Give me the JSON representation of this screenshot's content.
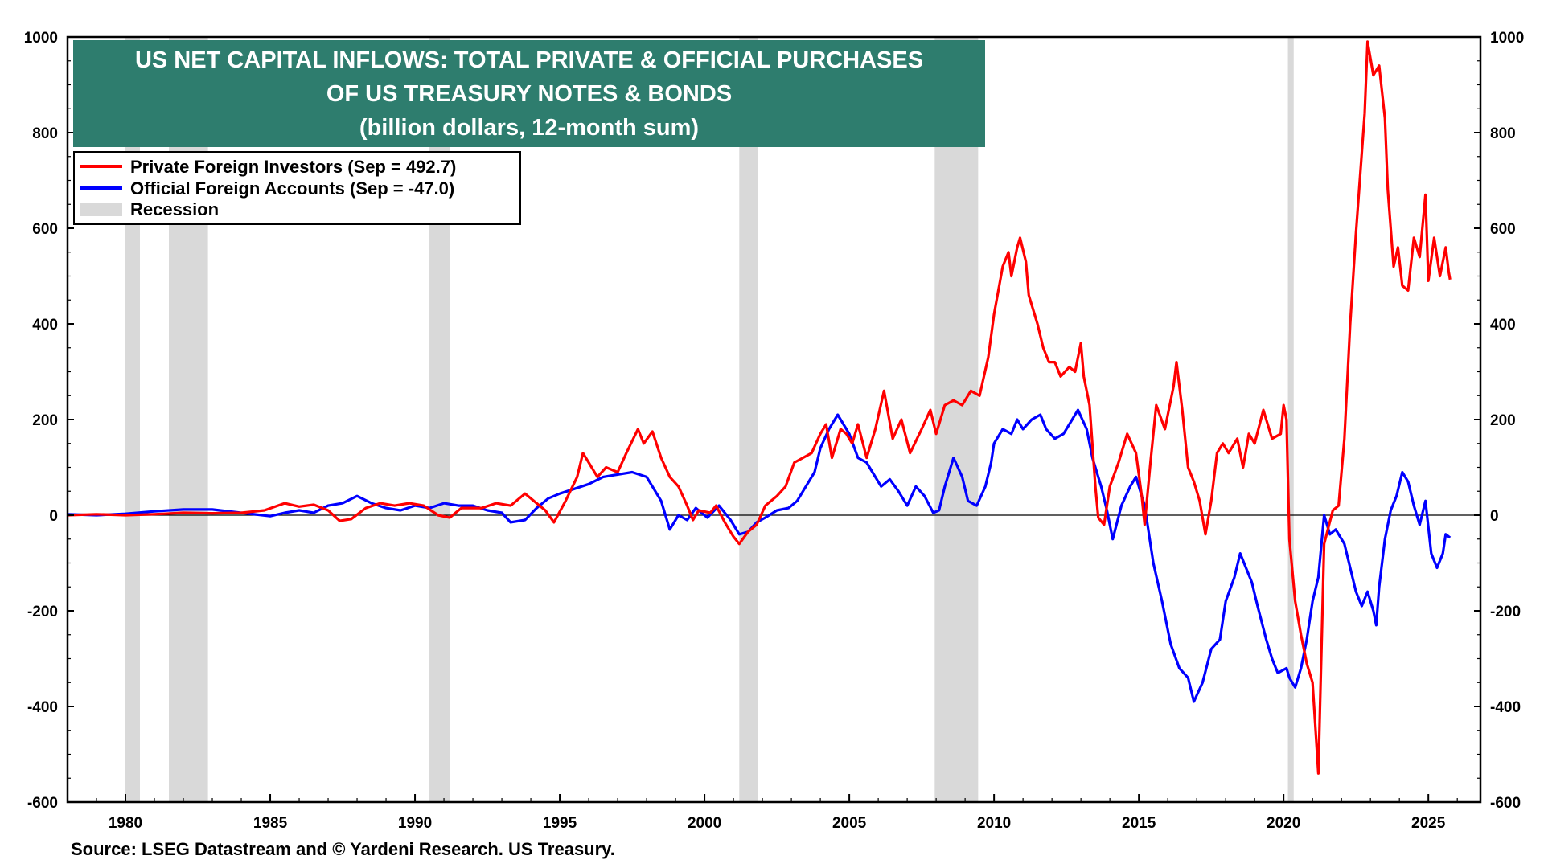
{
  "chart_data": {
    "type": "line",
    "title": [
      "US NET CAPITAL INFLOWS: TOTAL PRIVATE & OFFICIAL PURCHASES",
      "OF US TREASURY NOTES & BONDS",
      "(billion dollars, 12-month sum)"
    ],
    "xlim": [
      1978,
      2026.8
    ],
    "ylim": [
      -600,
      1000
    ],
    "x_ticks": [
      1980,
      1985,
      1990,
      1995,
      2000,
      2005,
      2010,
      2015,
      2020,
      2025
    ],
    "y_ticks": [
      -600,
      -400,
      -200,
      0,
      200,
      400,
      600,
      800,
      1000
    ],
    "legend": {
      "placement": "top-left",
      "entries": [
        "Private Foreign Investors (Sep = 492.7)",
        "Official Foreign Accounts (Sep = -47.0)",
        "Recession"
      ]
    },
    "recessions": [
      [
        1980.0,
        1980.5
      ],
      [
        1981.5,
        1982.85
      ],
      [
        1990.5,
        1991.2
      ],
      [
        2001.2,
        2001.85
      ],
      [
        2007.95,
        2009.45
      ],
      [
        2020.15,
        2020.35
      ]
    ],
    "series": [
      {
        "name": "Private Foreign Investors",
        "color": "#ff0000",
        "points": [
          [
            1978,
            0
          ],
          [
            1979,
            2
          ],
          [
            1980,
            0
          ],
          [
            1981,
            2
          ],
          [
            1982,
            5
          ],
          [
            1983,
            4
          ],
          [
            1984,
            5
          ],
          [
            1984.8,
            10
          ],
          [
            1985.5,
            25
          ],
          [
            1986,
            18
          ],
          [
            1986.5,
            22
          ],
          [
            1987,
            10
          ],
          [
            1987.4,
            -12
          ],
          [
            1987.8,
            -8
          ],
          [
            1988.3,
            15
          ],
          [
            1988.8,
            25
          ],
          [
            1989.3,
            20
          ],
          [
            1989.8,
            25
          ],
          [
            1990.3,
            20
          ],
          [
            1990.8,
            0
          ],
          [
            1991.2,
            -5
          ],
          [
            1991.6,
            15
          ],
          [
            1992.3,
            15
          ],
          [
            1992.8,
            25
          ],
          [
            1993.3,
            20
          ],
          [
            1993.8,
            45
          ],
          [
            1994.2,
            25
          ],
          [
            1994.5,
            10
          ],
          [
            1994.8,
            -15
          ],
          [
            1995.2,
            30
          ],
          [
            1995.6,
            80
          ],
          [
            1995.8,
            130
          ],
          [
            1996,
            110
          ],
          [
            1996.3,
            80
          ],
          [
            1996.6,
            100
          ],
          [
            1997,
            90
          ],
          [
            1997.3,
            130
          ],
          [
            1997.7,
            180
          ],
          [
            1997.9,
            150
          ],
          [
            1998.2,
            175
          ],
          [
            1998.5,
            120
          ],
          [
            1998.8,
            80
          ],
          [
            1999.1,
            60
          ],
          [
            1999.4,
            20
          ],
          [
            1999.6,
            -10
          ],
          [
            1999.8,
            10
          ],
          [
            2000.2,
            5
          ],
          [
            2000.4,
            20
          ],
          [
            2000.7,
            -15
          ],
          [
            2001.0,
            -45
          ],
          [
            2001.2,
            -60
          ],
          [
            2001.5,
            -35
          ],
          [
            2001.8,
            -20
          ],
          [
            2002.1,
            20
          ],
          [
            2002.5,
            40
          ],
          [
            2002.8,
            60
          ],
          [
            2003.1,
            110
          ],
          [
            2003.4,
            120
          ],
          [
            2003.7,
            130
          ],
          [
            2004.0,
            170
          ],
          [
            2004.2,
            190
          ],
          [
            2004.4,
            120
          ],
          [
            2004.7,
            180
          ],
          [
            2004.9,
            170
          ],
          [
            2005.1,
            150
          ],
          [
            2005.3,
            190
          ],
          [
            2005.6,
            120
          ],
          [
            2005.9,
            180
          ],
          [
            2006.2,
            260
          ],
          [
            2006.5,
            160
          ],
          [
            2006.8,
            200
          ],
          [
            2007.1,
            130
          ],
          [
            2007.5,
            180
          ],
          [
            2007.8,
            220
          ],
          [
            2008.0,
            170
          ],
          [
            2008.3,
            230
          ],
          [
            2008.6,
            240
          ],
          [
            2008.9,
            230
          ],
          [
            2009.2,
            260
          ],
          [
            2009.5,
            250
          ],
          [
            2009.8,
            330
          ],
          [
            2010.0,
            420
          ],
          [
            2010.3,
            520
          ],
          [
            2010.5,
            550
          ],
          [
            2010.6,
            500
          ],
          [
            2010.8,
            560
          ],
          [
            2010.9,
            580
          ],
          [
            2011.1,
            530
          ],
          [
            2011.2,
            460
          ],
          [
            2011.5,
            400
          ],
          [
            2011.7,
            350
          ],
          [
            2011.9,
            320
          ],
          [
            2012.1,
            320
          ],
          [
            2012.3,
            290
          ],
          [
            2012.6,
            310
          ],
          [
            2012.8,
            300
          ],
          [
            2013.0,
            360
          ],
          [
            2013.1,
            290
          ],
          [
            2013.3,
            230
          ],
          [
            2013.5,
            60
          ],
          [
            2013.6,
            -5
          ],
          [
            2013.8,
            -20
          ],
          [
            2014.0,
            60
          ],
          [
            2014.3,
            110
          ],
          [
            2014.6,
            170
          ],
          [
            2014.9,
            130
          ],
          [
            2015.1,
            40
          ],
          [
            2015.2,
            -20
          ],
          [
            2015.4,
            110
          ],
          [
            2015.6,
            230
          ],
          [
            2015.9,
            180
          ],
          [
            2016.2,
            270
          ],
          [
            2016.3,
            320
          ],
          [
            2016.5,
            220
          ],
          [
            2016.7,
            100
          ],
          [
            2016.9,
            70
          ],
          [
            2017.1,
            30
          ],
          [
            2017.3,
            -40
          ],
          [
            2017.5,
            30
          ],
          [
            2017.7,
            130
          ],
          [
            2017.9,
            150
          ],
          [
            2018.1,
            130
          ],
          [
            2018.4,
            160
          ],
          [
            2018.6,
            100
          ],
          [
            2018.8,
            170
          ],
          [
            2019.0,
            150
          ],
          [
            2019.3,
            220
          ],
          [
            2019.6,
            160
          ],
          [
            2019.9,
            170
          ],
          [
            2020.0,
            230
          ],
          [
            2020.1,
            200
          ],
          [
            2020.2,
            -50
          ],
          [
            2020.4,
            -180
          ],
          [
            2020.6,
            -250
          ],
          [
            2020.8,
            -310
          ],
          [
            2021.0,
            -350
          ],
          [
            2021.2,
            -540
          ],
          [
            2021.4,
            -60
          ],
          [
            2021.7,
            10
          ],
          [
            2021.9,
            20
          ],
          [
            2022.1,
            160
          ],
          [
            2022.3,
            400
          ],
          [
            2022.5,
            590
          ],
          [
            2022.8,
            840
          ],
          [
            2022.9,
            990
          ],
          [
            2023.1,
            920
          ],
          [
            2023.3,
            940
          ],
          [
            2023.5,
            830
          ],
          [
            2023.6,
            680
          ],
          [
            2023.8,
            520
          ],
          [
            2023.95,
            560
          ],
          [
            2024.1,
            480
          ],
          [
            2024.3,
            470
          ],
          [
            2024.5,
            580
          ],
          [
            2024.7,
            540
          ],
          [
            2024.9,
            670
          ],
          [
            2025.0,
            490
          ],
          [
            2025.2,
            580
          ],
          [
            2025.4,
            500
          ],
          [
            2025.6,
            560
          ],
          [
            2025.7,
            510
          ],
          [
            2025.75,
            492.7
          ]
        ]
      },
      {
        "name": "Official Foreign Accounts",
        "color": "#0000ff",
        "points": [
          [
            1978,
            2
          ],
          [
            1979,
            0
          ],
          [
            1980,
            3
          ],
          [
            1981,
            8
          ],
          [
            1982,
            12
          ],
          [
            1983,
            12
          ],
          [
            1984,
            5
          ],
          [
            1985,
            -2
          ],
          [
            1985.5,
            5
          ],
          [
            1986,
            10
          ],
          [
            1986.5,
            5
          ],
          [
            1987,
            20
          ],
          [
            1987.5,
            25
          ],
          [
            1988,
            40
          ],
          [
            1988.5,
            25
          ],
          [
            1989,
            15
          ],
          [
            1989.5,
            10
          ],
          [
            1990,
            20
          ],
          [
            1990.5,
            15
          ],
          [
            1991,
            25
          ],
          [
            1991.5,
            20
          ],
          [
            1992,
            20
          ],
          [
            1992.5,
            10
          ],
          [
            1993,
            5
          ],
          [
            1993.3,
            -15
          ],
          [
            1993.8,
            -10
          ],
          [
            1994.2,
            15
          ],
          [
            1994.6,
            35
          ],
          [
            1995,
            45
          ],
          [
            1995.5,
            55
          ],
          [
            1996,
            65
          ],
          [
            1996.5,
            80
          ],
          [
            1997,
            85
          ],
          [
            1997.5,
            90
          ],
          [
            1998,
            80
          ],
          [
            1998.5,
            30
          ],
          [
            1998.8,
            -30
          ],
          [
            1999.1,
            0
          ],
          [
            1999.4,
            -10
          ],
          [
            1999.7,
            15
          ],
          [
            2000.1,
            -5
          ],
          [
            2000.5,
            20
          ],
          [
            2000.9,
            -10
          ],
          [
            2001.2,
            -40
          ],
          [
            2001.5,
            -35
          ],
          [
            2001.8,
            -15
          ],
          [
            2002.1,
            -5
          ],
          [
            2002.5,
            10
          ],
          [
            2002.9,
            15
          ],
          [
            2003.2,
            30
          ],
          [
            2003.5,
            60
          ],
          [
            2003.8,
            90
          ],
          [
            2004.0,
            140
          ],
          [
            2004.3,
            180
          ],
          [
            2004.6,
            210
          ],
          [
            2004.8,
            190
          ],
          [
            2005.0,
            170
          ],
          [
            2005.3,
            120
          ],
          [
            2005.6,
            110
          ],
          [
            2005.8,
            90
          ],
          [
            2006.1,
            60
          ],
          [
            2006.4,
            75
          ],
          [
            2006.7,
            50
          ],
          [
            2007.0,
            20
          ],
          [
            2007.3,
            60
          ],
          [
            2007.6,
            40
          ],
          [
            2007.9,
            5
          ],
          [
            2008.1,
            10
          ],
          [
            2008.3,
            60
          ],
          [
            2008.6,
            120
          ],
          [
            2008.9,
            80
          ],
          [
            2009.1,
            30
          ],
          [
            2009.4,
            20
          ],
          [
            2009.7,
            60
          ],
          [
            2009.9,
            110
          ],
          [
            2010.0,
            150
          ],
          [
            2010.3,
            180
          ],
          [
            2010.6,
            170
          ],
          [
            2010.8,
            200
          ],
          [
            2011.0,
            180
          ],
          [
            2011.3,
            200
          ],
          [
            2011.6,
            210
          ],
          [
            2011.8,
            180
          ],
          [
            2012.1,
            160
          ],
          [
            2012.4,
            170
          ],
          [
            2012.7,
            200
          ],
          [
            2012.9,
            220
          ],
          [
            2013.2,
            180
          ],
          [
            2013.4,
            120
          ],
          [
            2013.7,
            60
          ],
          [
            2013.9,
            10
          ],
          [
            2014.1,
            -50
          ],
          [
            2014.4,
            20
          ],
          [
            2014.7,
            60
          ],
          [
            2014.9,
            80
          ],
          [
            2015.2,
            20
          ],
          [
            2015.5,
            -100
          ],
          [
            2015.8,
            -180
          ],
          [
            2016.1,
            -270
          ],
          [
            2016.4,
            -320
          ],
          [
            2016.7,
            -340
          ],
          [
            2016.9,
            -390
          ],
          [
            2017.2,
            -350
          ],
          [
            2017.5,
            -280
          ],
          [
            2017.8,
            -260
          ],
          [
            2018.0,
            -180
          ],
          [
            2018.3,
            -130
          ],
          [
            2018.5,
            -80
          ],
          [
            2018.7,
            -110
          ],
          [
            2018.9,
            -140
          ],
          [
            2019.1,
            -190
          ],
          [
            2019.4,
            -260
          ],
          [
            2019.6,
            -300
          ],
          [
            2019.8,
            -330
          ],
          [
            2020.1,
            -320
          ],
          [
            2020.2,
            -340
          ],
          [
            2020.4,
            -360
          ],
          [
            2020.6,
            -320
          ],
          [
            2020.8,
            -260
          ],
          [
            2021.0,
            -180
          ],
          [
            2021.2,
            -130
          ],
          [
            2021.4,
            0
          ],
          [
            2021.6,
            -40
          ],
          [
            2021.8,
            -30
          ],
          [
            2022.1,
            -60
          ],
          [
            2022.3,
            -110
          ],
          [
            2022.5,
            -160
          ],
          [
            2022.7,
            -190
          ],
          [
            2022.9,
            -160
          ],
          [
            2023.1,
            -200
          ],
          [
            2023.2,
            -230
          ],
          [
            2023.3,
            -150
          ],
          [
            2023.5,
            -50
          ],
          [
            2023.7,
            10
          ],
          [
            2023.9,
            40
          ],
          [
            2024.1,
            90
          ],
          [
            2024.3,
            70
          ],
          [
            2024.5,
            20
          ],
          [
            2024.7,
            -20
          ],
          [
            2024.9,
            30
          ],
          [
            2025.1,
            -80
          ],
          [
            2025.3,
            -110
          ],
          [
            2025.5,
            -80
          ],
          [
            2025.6,
            -40
          ],
          [
            2025.75,
            -47.0
          ]
        ]
      }
    ],
    "source": "Source: LSEG Datastream and © Yardeni Research. US Treasury."
  }
}
